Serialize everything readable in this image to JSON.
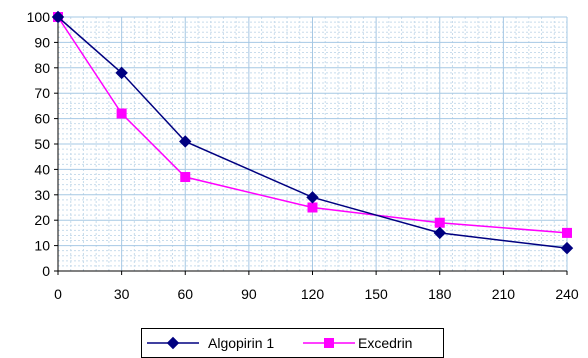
{
  "chart_data": {
    "type": "line",
    "title": "",
    "xlabel": "",
    "ylabel": "",
    "xlim": [
      0,
      240
    ],
    "ylim": [
      0,
      100
    ],
    "x_ticks": [
      0,
      30,
      60,
      90,
      120,
      150,
      180,
      210,
      240
    ],
    "y_ticks": [
      0,
      10,
      20,
      30,
      40,
      50,
      60,
      70,
      80,
      90,
      100
    ],
    "grid": true,
    "legend_position": "bottom",
    "series": [
      {
        "name": "Algopirin 1",
        "color": "#000080",
        "marker": "diamond",
        "x": [
          0,
          30,
          60,
          120,
          180,
          240
        ],
        "values": [
          100,
          78,
          51,
          29,
          15,
          9
        ]
      },
      {
        "name": "Excedrin",
        "color": "#FF00FF",
        "marker": "square",
        "x": [
          0,
          30,
          60,
          120,
          180,
          240
        ],
        "values": [
          100,
          62,
          37,
          25,
          19,
          15
        ]
      }
    ]
  }
}
